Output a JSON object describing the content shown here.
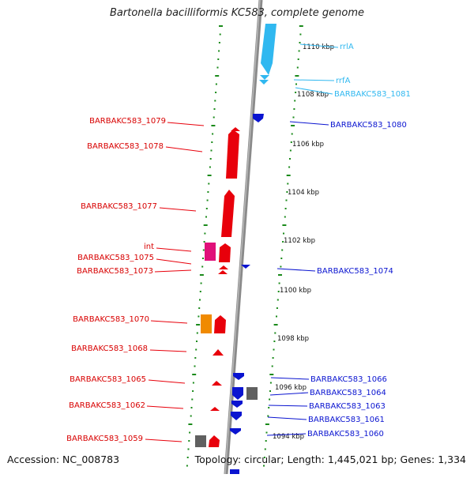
{
  "title": "Bartonella bacilliformis KC583, complete genome",
  "footer": {
    "accession": "Accession: NC_008783",
    "stats": "Topology: circular; Length: 1,445,021 bp; Genes: 1,334"
  },
  "colors": {
    "forward_cds": "#e8000b",
    "reverse_cds": "#0a14d0",
    "rrna": "#30b8f0",
    "int_gene": "#e0107a",
    "orange_gene": "#f08a00",
    "grey_gene": "#606060",
    "ticks": "#1a8a1a",
    "backbone": "#8a8a8a"
  },
  "ruler_labels": [
    "1110 kbp",
    "1108 kbp",
    "1106 kbp",
    "1104 kbp",
    "1102 kbp",
    "1100 kbp",
    "1098 kbp",
    "1096 kbp",
    "1094 kbp"
  ],
  "left_labels": [
    "BARBAKC583_1079",
    "BARBAKC583_1078",
    "BARBAKC583_1077",
    "int",
    "BARBAKC583_1075",
    "BARBAKC583_1073",
    "BARBAKC583_1070",
    "BARBAKC583_1068",
    "BARBAKC583_1065",
    "BARBAKC583_1062",
    "BARBAKC583_1059"
  ],
  "right_labels": [
    "rrlA",
    "rrfA",
    "BARBAKC583_1081",
    "BARBAKC583_1080",
    "BARBAKC583_1074",
    "BARBAKC583_1066",
    "BARBAKC583_1064",
    "BARBAKC583_1063",
    "BARBAKC583_1061",
    "BARBAKC583_1060"
  ]
}
